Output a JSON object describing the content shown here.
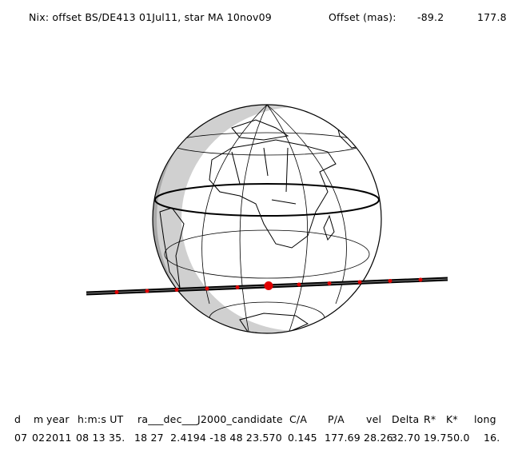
{
  "header": {
    "title": "Nix: offset BS/DE413 01Jul11, star MA 10nov09",
    "offset_label": "Offset (mas):",
    "offset_x": "-89.2",
    "offset_y": "177.8"
  },
  "table": {
    "columns": [
      "d",
      "m",
      "year",
      "h:m:s UT",
      "ra___dec___J2000_candidate",
      "C/A",
      "P/A",
      "vel",
      "Delta",
      "R*",
      "K*",
      "long"
    ],
    "rows": [
      [
        "07",
        "02",
        "2011",
        "08 13 35.",
        "18 27  2.4194 -18 48 23.570",
        "0.145",
        "177.69",
        "28.26",
        "32.70",
        "19.7",
        "50.0",
        "16."
      ]
    ]
  }
}
